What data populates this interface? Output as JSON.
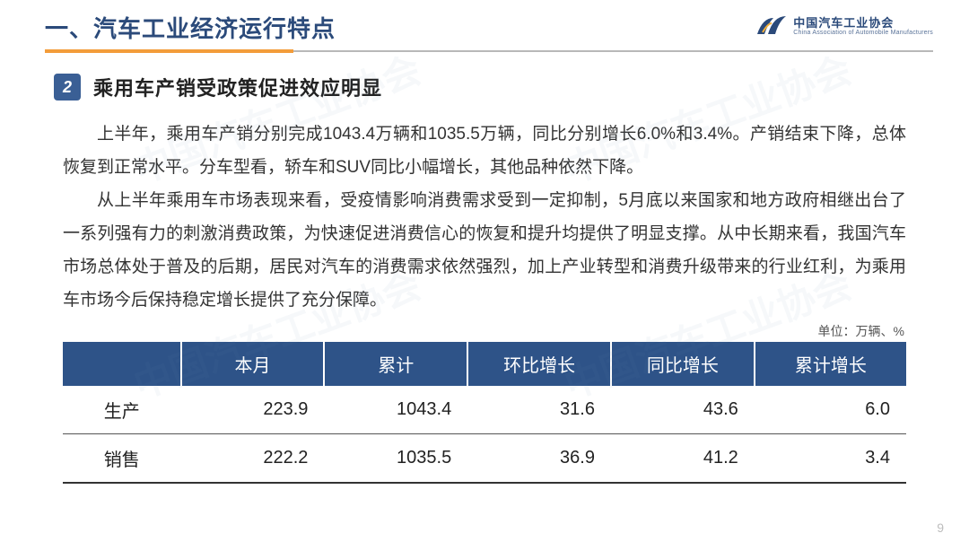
{
  "header": {
    "title": "一、汽车工业经济运行特点",
    "logo_cn": "中国汽车工业协会",
    "logo_en": "China Association of Automobile Manufacturers",
    "rule_orange_width_pct": 28
  },
  "section": {
    "number": "2",
    "title": "乘用车产销受政策促进效应明显"
  },
  "paragraphs": [
    "上半年，乘用车产销分别完成1043.4万辆和1035.5万辆，同比分别增长6.0%和3.4%。产销结束下降，总体恢复到正常水平。分车型看，轿车和SUV同比小幅增长，其他品种依然下降。",
    "从上半年乘用车市场表现来看，受疫情影响消费需求受到一定抑制，5月底以来国家和地方政府相继出台了一系列强有力的刺激消费政策，为快速促进消费信心的恢复和提升均提供了明显支撑。从中长期来看，我国汽车市场总体处于普及的后期，居民对汽车的消费需求依然强烈，加上产业转型和消费升级带来的行业红利，为乘用车市场今后保持稳定增长提供了充分保障。"
  ],
  "table": {
    "unit_label": "单位：万辆、%",
    "columns": [
      "",
      "本月",
      "累计",
      "环比增长",
      "同比增长",
      "累计增长"
    ],
    "col_widths_pct": [
      14,
      17,
      17,
      17,
      17,
      18
    ],
    "rows": [
      {
        "label": "生产",
        "values": [
          "223.9",
          "1043.4",
          "31.6",
          "43.6",
          "6.0"
        ]
      },
      {
        "label": "销售",
        "values": [
          "222.2",
          "1035.5",
          "36.9",
          "41.2",
          "3.4"
        ]
      }
    ],
    "header_bg": "#2e5388",
    "header_fg": "#ffffff",
    "border_color": "#555555"
  },
  "page_number": "9",
  "colors": {
    "title": "#2b4a7a",
    "accent_orange": "#f39c3a",
    "badge_bg": "#3a5f95",
    "body_text": "#333333"
  },
  "watermark_text": "中国汽车工业协会"
}
